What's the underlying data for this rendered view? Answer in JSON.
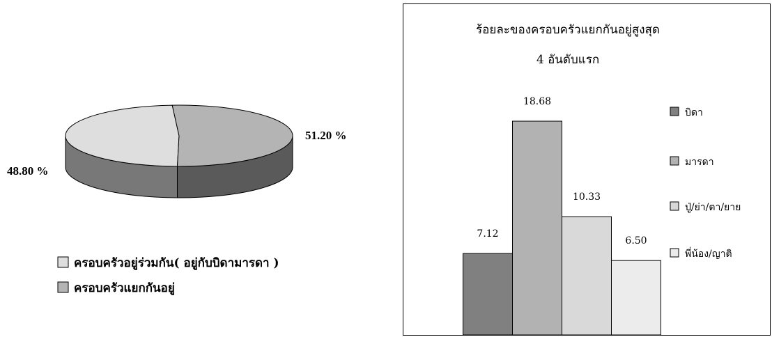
{
  "chart_data": [
    {
      "type": "pie",
      "categories": [
        "ครอบครัวอยู่ร่วมกัน( อยู่กับบิดามารดา )",
        "ครอบครัวแยกกันอยู่"
      ],
      "values": [
        48.8,
        51.2
      ],
      "value_labels": [
        "48.80 %",
        "51.20 %"
      ],
      "colors": [
        "#dedede",
        "#b4b4b4"
      ],
      "side_colors": [
        "#787878",
        "#5a5a5a"
      ],
      "legend": [
        "ครอบครัวอยู่ร่วมกัน( อยู่กับบิดามารดา )",
        "ครอบครัวแยกกันอยู่"
      ]
    },
    {
      "type": "bar",
      "title": "ร้อยละของครอบครัวแยกกันอยู่สูงสุด",
      "subtitle": "4 อันดับแรก",
      "categories": [
        "บิดา",
        "มารดา",
        "ปู่/ย่า/ตา/ยาย",
        "พี่น้อง/ญาติ"
      ],
      "values": [
        7.12,
        18.68,
        10.33,
        6.5
      ],
      "value_labels": [
        "7.12",
        "18.68",
        "10.33",
        "6.50"
      ],
      "colors": [
        "#808080",
        "#b2b2b2",
        "#d9d9d9",
        "#ececec"
      ],
      "ylim": [
        0,
        20
      ]
    }
  ]
}
